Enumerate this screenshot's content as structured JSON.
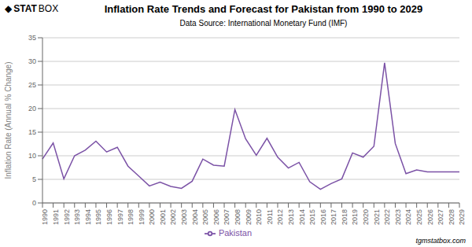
{
  "chart_data": {
    "type": "line",
    "title": "Inflation Rate Trends and Forecast for Pakistan from 1990 to 2029",
    "subtitle": "Data Source: International Monetary Fund (IMF)",
    "y_label": "Inflation Rate (Annual % Change)",
    "annotations": [
      "◆",
      "STAT",
      "BOX",
      "tgmstatbox.com"
    ],
    "categories": [
      "1990",
      "1991",
      "1992",
      "1993",
      "1994",
      "1995",
      "1996",
      "1997",
      "1998",
      "1999",
      "2000",
      "2001",
      "2002",
      "2003",
      "2004",
      "2005",
      "2006",
      "2007",
      "2008",
      "2009",
      "2010",
      "2011",
      "2012",
      "2013",
      "2014",
      "2015",
      "2016",
      "2017",
      "2018",
      "2019",
      "2020",
      "2021",
      "2022",
      "2023",
      "2024",
      "2025",
      "2026",
      "2027",
      "2028",
      "2029"
    ],
    "series": [
      {
        "name": "Pakistan",
        "color": "#7b52a6",
        "values": [
          9.3,
          12.7,
          5.1,
          10.0,
          11.2,
          13.1,
          10.8,
          11.8,
          7.8,
          5.7,
          3.6,
          4.4,
          3.5,
          3.1,
          4.6,
          9.3,
          8.0,
          7.8,
          19.8,
          13.6,
          10.1,
          13.7,
          9.7,
          7.4,
          8.6,
          4.5,
          2.9,
          4.1,
          5.1,
          10.6,
          9.7,
          12.0,
          29.7,
          12.6,
          6.2,
          7.0,
          6.6,
          6.6,
          6.6,
          6.6
        ]
      }
    ],
    "ylim": [
      0,
      35
    ],
    "yticks": [
      0,
      5,
      10,
      15,
      20,
      25,
      30,
      35
    ],
    "grid": true,
    "legend": "bottom"
  }
}
